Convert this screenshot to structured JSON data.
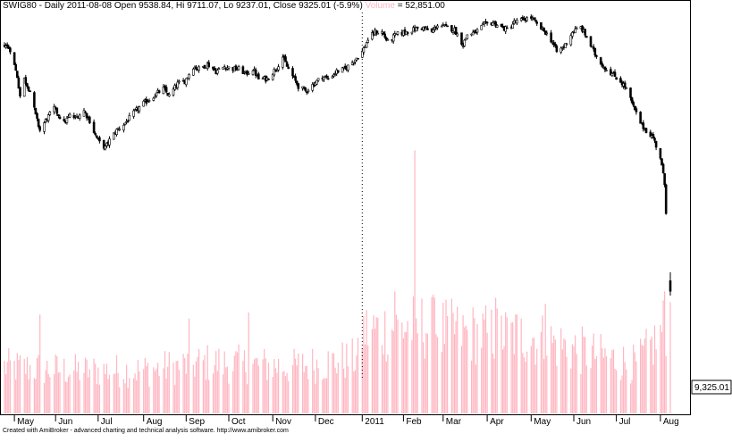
{
  "header": {
    "symbol": "SWIG80",
    "periodicity": "Daily",
    "date": "2011-08-08",
    "open_label": "Open",
    "open": "9538.84",
    "high_label": "Hi",
    "high": "9711.07",
    "low_label": "Lo",
    "low": "9237.01",
    "close_label": "Close",
    "close": "9325.01",
    "change": "(-5.9%)",
    "volume_label": "Volume",
    "volume_value": "52,851.00"
  },
  "price_tag": "9,325.01",
  "footer_text": "Created with AmiBroker - advanced charting and technical analysis software. http://www.amibroker.com",
  "colors": {
    "candle": "#000000",
    "volume": "#ffb6c1",
    "background": "#ffffff",
    "grid": "#000000"
  },
  "chart_data": {
    "type": "candlestick",
    "grid": false,
    "x_labels": [
      "May",
      "Jun",
      "Jul",
      "Aug",
      "Sep",
      "Oct",
      "Nov",
      "Dec",
      "2011",
      "Feb",
      "Mar",
      "Apr",
      "May",
      "Jun",
      "Jul",
      "Aug"
    ],
    "x_range": [
      "2010-04-26",
      "2011-08-08"
    ],
    "year_marker": "2011-01-03",
    "last": {
      "date": "2011-08-08",
      "open": 9538.84,
      "high": 9711.07,
      "low": 9237.01,
      "close": 9325.01,
      "volume": 52851
    },
    "price_path": [
      [
        "2010-04-26",
        14350
      ],
      [
        "2010-04-30",
        14250
      ],
      [
        "2010-05-05",
        13700
      ],
      [
        "2010-05-07",
        13300
      ],
      [
        "2010-05-10",
        13650
      ],
      [
        "2010-05-14",
        13400
      ],
      [
        "2010-05-18",
        12900
      ],
      [
        "2010-05-21",
        12600
      ],
      [
        "2010-05-25",
        12800
      ],
      [
        "2010-05-31",
        13050
      ],
      [
        "2010-06-07",
        12750
      ],
      [
        "2010-06-11",
        12900
      ],
      [
        "2010-06-15",
        12850
      ],
      [
        "2010-06-21",
        13000
      ],
      [
        "2010-06-25",
        12800
      ],
      [
        "2010-06-29",
        12500
      ],
      [
        "2010-07-02",
        12350
      ],
      [
        "2010-07-06",
        12250
      ],
      [
        "2010-07-09",
        12400
      ],
      [
        "2010-07-14",
        12600
      ],
      [
        "2010-07-20",
        12750
      ],
      [
        "2010-07-26",
        12950
      ],
      [
        "2010-08-02",
        13150
      ],
      [
        "2010-08-09",
        13300
      ],
      [
        "2010-08-16",
        13450
      ],
      [
        "2010-08-20",
        13300
      ],
      [
        "2010-08-26",
        13550
      ],
      [
        "2010-08-31",
        13600
      ],
      [
        "2010-09-06",
        13900
      ],
      [
        "2010-09-10",
        13850
      ],
      [
        "2010-09-16",
        13950
      ],
      [
        "2010-09-22",
        13800
      ],
      [
        "2010-09-28",
        13900
      ],
      [
        "2010-10-04",
        13850
      ],
      [
        "2010-10-08",
        13850
      ],
      [
        "2010-10-13",
        13750
      ],
      [
        "2010-10-18",
        13850
      ],
      [
        "2010-10-22",
        13650
      ],
      [
        "2010-10-28",
        13650
      ],
      [
        "2010-11-03",
        13850
      ],
      [
        "2010-11-08",
        14100
      ],
      [
        "2010-11-11",
        13900
      ],
      [
        "2010-11-15",
        13700
      ],
      [
        "2010-11-19",
        13500
      ],
      [
        "2010-11-24",
        13400
      ],
      [
        "2010-11-30",
        13550
      ],
      [
        "2010-12-06",
        13700
      ],
      [
        "2010-12-10",
        13650
      ],
      [
        "2010-12-16",
        13800
      ],
      [
        "2010-12-22",
        13850
      ],
      [
        "2010-12-29",
        14050
      ],
      [
        "2011-01-03",
        14200
      ],
      [
        "2011-01-07",
        14450
      ],
      [
        "2011-01-12",
        14600
      ],
      [
        "2011-01-17",
        14600
      ],
      [
        "2011-01-21",
        14400
      ],
      [
        "2011-01-27",
        14550
      ],
      [
        "2011-02-02",
        14600
      ],
      [
        "2011-02-08",
        14650
      ],
      [
        "2011-02-14",
        14700
      ],
      [
        "2011-02-21",
        14600
      ],
      [
        "2011-02-25",
        14750
      ],
      [
        "2011-03-03",
        14700
      ],
      [
        "2011-03-09",
        14650
      ],
      [
        "2011-03-15",
        14350
      ],
      [
        "2011-03-18",
        14550
      ],
      [
        "2011-03-24",
        14600
      ],
      [
        "2011-03-30",
        14750
      ],
      [
        "2011-04-05",
        14800
      ],
      [
        "2011-04-11",
        14700
      ],
      [
        "2011-04-15",
        14650
      ],
      [
        "2011-04-20",
        14800
      ],
      [
        "2011-04-26",
        14850
      ],
      [
        "2011-05-02",
        14900
      ],
      [
        "2011-05-06",
        14750
      ],
      [
        "2011-05-12",
        14600
      ],
      [
        "2011-05-17",
        14400
      ],
      [
        "2011-05-20",
        14200
      ],
      [
        "2011-05-25",
        14300
      ],
      [
        "2011-05-31",
        14600
      ],
      [
        "2011-06-06",
        14700
      ],
      [
        "2011-06-10",
        14500
      ],
      [
        "2011-06-16",
        14150
      ],
      [
        "2011-06-22",
        13900
      ],
      [
        "2011-06-28",
        13750
      ],
      [
        "2011-07-04",
        13600
      ],
      [
        "2011-07-08",
        13450
      ],
      [
        "2011-07-14",
        13000
      ],
      [
        "2011-07-19",
        12700
      ],
      [
        "2011-07-22",
        12600
      ],
      [
        "2011-07-27",
        12450
      ],
      [
        "2011-08-01",
        12050
      ],
      [
        "2011-08-04",
        11500
      ],
      [
        "2011-08-08",
        9325
      ]
    ],
    "volume_profile": [
      [
        "2010-04-26",
        24000
      ],
      [
        "2010-06-15",
        22000
      ],
      [
        "2010-08-01",
        22000
      ],
      [
        "2010-09-15",
        26000
      ],
      [
        "2010-11-15",
        24000
      ],
      [
        "2010-12-31",
        28000
      ],
      [
        "2011-01-03",
        42000
      ],
      [
        "2011-02-15",
        45000
      ],
      [
        "2011-03-15",
        41000
      ],
      [
        "2011-04-30",
        40000
      ],
      [
        "2011-06-01",
        33000
      ],
      [
        "2011-07-15",
        25000
      ],
      [
        "2011-08-01",
        40000
      ],
      [
        "2011-08-08",
        52851
      ]
    ],
    "volume_spikes": [
      [
        "2010-05-21",
        47000
      ],
      [
        "2010-09-03",
        45000
      ],
      [
        "2010-10-15",
        48000
      ],
      [
        "2011-02-09",
        125000
      ],
      [
        "2011-01-26",
        58000
      ],
      [
        "2011-02-23",
        55000
      ],
      [
        "2011-04-07",
        55000
      ],
      [
        "2011-05-12",
        52000
      ],
      [
        "2011-08-04",
        58000
      ]
    ]
  }
}
